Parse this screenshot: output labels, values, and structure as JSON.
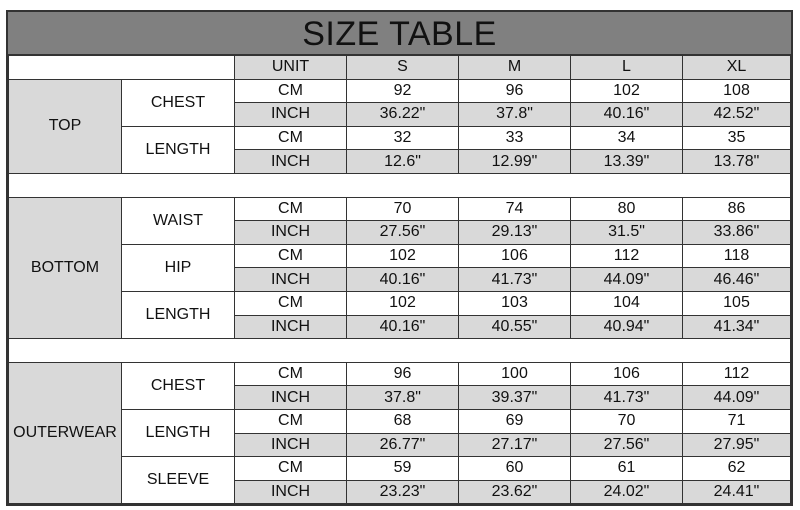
{
  "title": "SIZE TABLE",
  "header": {
    "unit": "UNIT",
    "sizes": [
      "S",
      "M",
      "L",
      "XL"
    ]
  },
  "colors": {
    "title_bg": "#808080",
    "shaded_cell": "#d9d9d9",
    "border": "#333333"
  },
  "sections": [
    {
      "category": "TOP",
      "measures": [
        {
          "name": "CHEST",
          "rows": [
            {
              "unit": "CM",
              "values": [
                "92",
                "96",
                "102",
                "108"
              ]
            },
            {
              "unit": "INCH",
              "values": [
                "36.22\"",
                "37.8\"",
                "40.16\"",
                "42.52\""
              ]
            }
          ]
        },
        {
          "name": "LENGTH",
          "rows": [
            {
              "unit": "CM",
              "values": [
                "32",
                "33",
                "34",
                "35"
              ]
            },
            {
              "unit": "INCH",
              "values": [
                "12.6\"",
                "12.99\"",
                "13.39\"",
                "13.78\""
              ]
            }
          ]
        }
      ]
    },
    {
      "category": "BOTTOM",
      "measures": [
        {
          "name": "WAIST",
          "rows": [
            {
              "unit": "CM",
              "values": [
                "70",
                "74",
                "80",
                "86"
              ]
            },
            {
              "unit": "INCH",
              "values": [
                "27.56\"",
                "29.13\"",
                "31.5\"",
                "33.86\""
              ]
            }
          ]
        },
        {
          "name": "HIP",
          "rows": [
            {
              "unit": "CM",
              "values": [
                "102",
                "106",
                "112",
                "118"
              ]
            },
            {
              "unit": "INCH",
              "values": [
                "40.16\"",
                "41.73\"",
                "44.09\"",
                "46.46\""
              ]
            }
          ]
        },
        {
          "name": "LENGTH",
          "rows": [
            {
              "unit": "CM",
              "values": [
                "102",
                "103",
                "104",
                "105"
              ]
            },
            {
              "unit": "INCH",
              "values": [
                "40.16\"",
                "40.55\"",
                "40.94\"",
                "41.34\""
              ]
            }
          ]
        }
      ]
    },
    {
      "category": "OUTERWEAR",
      "measures": [
        {
          "name": "CHEST",
          "rows": [
            {
              "unit": "CM",
              "values": [
                "96",
                "100",
                "106",
                "112"
              ]
            },
            {
              "unit": "INCH",
              "values": [
                "37.8\"",
                "39.37\"",
                "41.73\"",
                "44.09\""
              ]
            }
          ]
        },
        {
          "name": "LENGTH",
          "rows": [
            {
              "unit": "CM",
              "values": [
                "68",
                "69",
                "70",
                "71"
              ]
            },
            {
              "unit": "INCH",
              "values": [
                "26.77\"",
                "27.17\"",
                "27.56\"",
                "27.95\""
              ]
            }
          ]
        },
        {
          "name": "SLEEVE",
          "rows": [
            {
              "unit": "CM",
              "values": [
                "59",
                "60",
                "61",
                "62"
              ]
            },
            {
              "unit": "INCH",
              "values": [
                "23.23\"",
                "23.62\"",
                "24.02\"",
                "24.41\""
              ]
            }
          ]
        }
      ]
    }
  ]
}
